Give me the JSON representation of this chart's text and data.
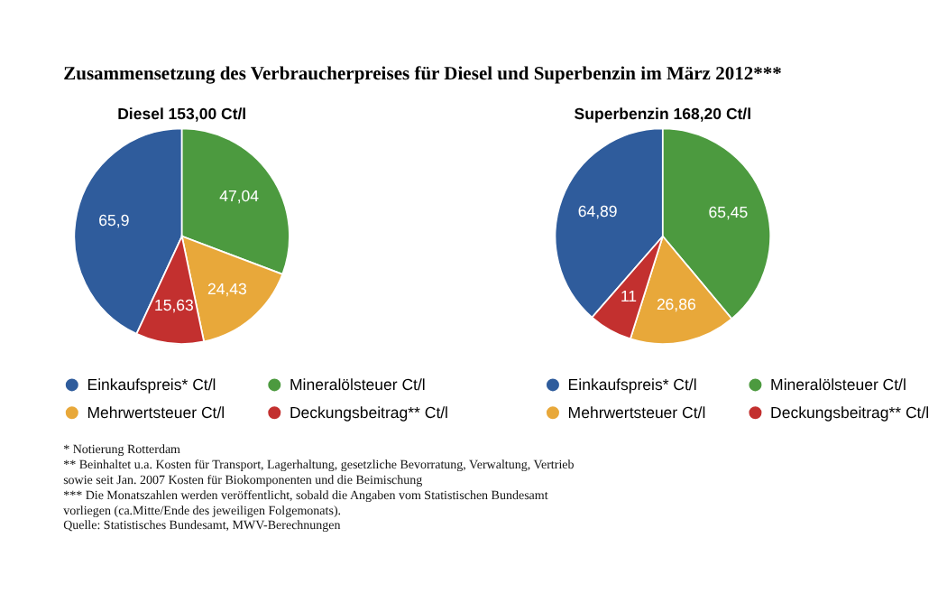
{
  "chart_data": [
    {
      "type": "pie",
      "title": "Zusammensetzung des Verbraucherpreises für Diesel und Superbenzin im März 2012***",
      "subtitle": "Diesel 153,00 Ct/l",
      "categories": [
        "Einkaufspreis* Ct/l",
        "Mineralölsteuer Ct/l",
        "Mehrwertsteuer Ct/l",
        "Deckungsbeitrag** Ct/l"
      ],
      "values": [
        65.9,
        47.04,
        24.43,
        15.63
      ],
      "value_labels": [
        "65,9",
        "47,04",
        "24,43",
        "15,63"
      ],
      "colors": [
        "#2f5c9c",
        "#4c9a3f",
        "#e8a83a",
        "#c3302f"
      ],
      "legend": "bottom",
      "annotations": [
        "* Notierung Rotterdam",
        "** Beinhaltet u.a. Kosten für Transport, Lagerhaltung, gesetzliche Bevorratung, Verwaltung, Vertrieb",
        "sowie seit Jan. 2007 Kosten für Biokomponenten und die Beimischung",
        "*** Die Monatszahlen werden veröffentlicht, sobald die Angaben vom Statistischen Bundesamt",
        "vorliegen (ca.Mitte/Ende des jeweiligen Folgemonats).",
        "Quelle: Statistisches Bundesamt, MWV-Berechnungen"
      ]
    },
    {
      "type": "pie",
      "subtitle": "Superbenzin 168,20 Ct/l",
      "categories": [
        "Einkaufspreis* Ct/l",
        "Mineralölsteuer Ct/l",
        "Mehrwertsteuer Ct/l",
        "Deckungsbeitrag** Ct/l"
      ],
      "values": [
        64.89,
        65.45,
        26.86,
        11
      ],
      "value_labels": [
        "64,89",
        "65,45",
        "26,86",
        "11"
      ],
      "colors": [
        "#2f5c9c",
        "#4c9a3f",
        "#e8a83a",
        "#c3302f"
      ],
      "legend": "bottom"
    }
  ]
}
